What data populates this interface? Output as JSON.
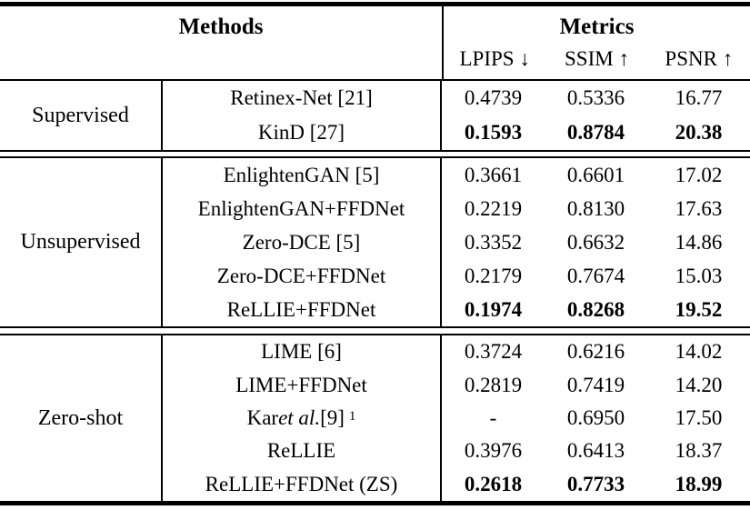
{
  "header": {
    "methods_label": "Methods",
    "metrics_label": "Metrics",
    "metric_columns": [
      {
        "label": "LPIPS ↓"
      },
      {
        "label": "SSIM ↑"
      },
      {
        "label": "PSNR ↑"
      }
    ]
  },
  "sections": [
    {
      "group": "Supervised",
      "rows": [
        {
          "method": "Retinex-Net [21]",
          "lpips": "0.4739",
          "ssim": "0.5336",
          "psnr": "16.77",
          "bold": false
        },
        {
          "method": "KinD [27]",
          "lpips": "0.1593",
          "ssim": "0.8784",
          "psnr": "20.38",
          "bold": true
        }
      ]
    },
    {
      "group": "Unsupervised",
      "rows": [
        {
          "method": "EnlightenGAN [5]",
          "lpips": "0.3661",
          "ssim": "0.6601",
          "psnr": "17.02",
          "bold": false
        },
        {
          "method": "EnlightenGAN+FFDNet",
          "lpips": "0.2219",
          "ssim": "0.8130",
          "psnr": "17.63",
          "bold": false
        },
        {
          "method": "Zero-DCE [5]",
          "lpips": "0.3352",
          "ssim": "0.6632",
          "psnr": "14.86",
          "bold": false
        },
        {
          "method": "Zero-DCE+FFDNet",
          "lpips": "0.2179",
          "ssim": "0.7674",
          "psnr": "15.03",
          "bold": false
        },
        {
          "method": "ReLLIE+FFDNet",
          "lpips": "0.1974",
          "ssim": "0.8268",
          "psnr": "19.52",
          "bold": true
        }
      ]
    },
    {
      "group": "Zero-shot",
      "rows": [
        {
          "method": "LIME [6]",
          "lpips": "0.3724",
          "ssim": "0.6216",
          "psnr": "14.02",
          "bold": false
        },
        {
          "method": "LIME+FFDNet",
          "lpips": "0.2819",
          "ssim": "0.7419",
          "psnr": "14.20",
          "bold": false
        },
        {
          "method_parts": {
            "pre": "Kar ",
            "italic": "et al.",
            "post": "[9]",
            "sup": "1"
          },
          "lpips": "-",
          "ssim": "0.6950",
          "psnr": "17.50",
          "bold": false
        },
        {
          "method": "ReLLIE",
          "lpips": "0.3976",
          "ssim": "0.6413",
          "psnr": "18.37",
          "bold": false
        },
        {
          "method": "ReLLIE+FFDNet (ZS)",
          "lpips": "0.2618",
          "ssim": "0.7733",
          "psnr": "18.99",
          "bold": true
        }
      ]
    }
  ],
  "colors": {
    "text": "#000000",
    "background": "#ffffff",
    "rule": "#000000"
  }
}
